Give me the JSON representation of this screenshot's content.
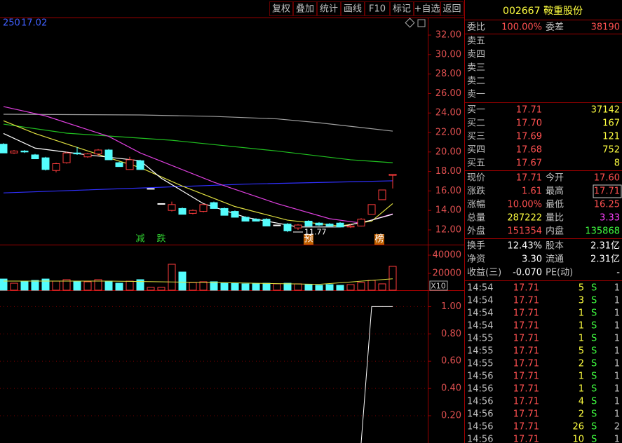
{
  "toolbar": [
    "复权",
    "叠加",
    "统计",
    "画线",
    "F10",
    "标记",
    "+自选",
    "返回"
  ],
  "ma_tag": "250",
  "ma_tag_value": "17.02",
  "price_chart": {
    "type": "candlestick",
    "ylim": [
      10.56,
      33.73
    ],
    "yticks": [
      {
        "value": 12,
        "label": "12.00"
      },
      {
        "value": 14,
        "label": "14.00"
      },
      {
        "value": 16,
        "label": "16.00"
      },
      {
        "value": 18,
        "label": "18.00"
      },
      {
        "value": 20,
        "label": "20.00"
      },
      {
        "value": 22,
        "label": "22.00"
      },
      {
        "value": 24,
        "label": "24.00"
      },
      {
        "value": 26,
        "label": "26.00"
      },
      {
        "value": 28,
        "label": "28.00"
      },
      {
        "value": 30,
        "label": "30.00"
      },
      {
        "value": 32,
        "label": "32.00"
      }
    ],
    "candles": [
      [
        20.8,
        20.9,
        19.9,
        19.9
      ],
      [
        19.9,
        20.2,
        19.8,
        20.1
      ],
      [
        20.1,
        20.2,
        19.9,
        20.0
      ],
      [
        19.7,
        19.8,
        19.3,
        19.3
      ],
      [
        19.4,
        19.5,
        18.1,
        18.2
      ],
      [
        18.1,
        18.9,
        17.9,
        18.8
      ],
      [
        18.9,
        20.0,
        18.8,
        19.9
      ],
      [
        19.9,
        20.5,
        19.7,
        19.8
      ],
      [
        19.5,
        19.9,
        19.4,
        19.8
      ],
      [
        19.8,
        20.3,
        19.6,
        20.2
      ],
      [
        20.2,
        20.3,
        19.2,
        19.2
      ],
      [
        18.9,
        19.0,
        18.5,
        18.5
      ],
      [
        18.2,
        19.5,
        18.2,
        19.2
      ],
      [
        19.1,
        19.2,
        18.2,
        18.2
      ],
      [
        16.25,
        16.25,
        16.25,
        16.25
      ],
      [
        14.7,
        14.7,
        14.7,
        14.7
      ],
      [
        14.0,
        14.9,
        13.9,
        14.6
      ],
      [
        14.2,
        14.3,
        13.6,
        13.6
      ],
      [
        13.7,
        14.1,
        13.6,
        14.0
      ],
      [
        13.9,
        14.7,
        13.8,
        14.6
      ],
      [
        14.8,
        14.9,
        14.2,
        14.2
      ],
      [
        14.2,
        14.3,
        13.5,
        13.5
      ],
      [
        13.9,
        14.0,
        13.3,
        13.3
      ],
      [
        13.3,
        13.4,
        12.9,
        12.9
      ],
      [
        13.1,
        13.2,
        12.9,
        12.9
      ],
      [
        13.1,
        13.2,
        12.4,
        12.4
      ],
      [
        12.5,
        12.5,
        12.5,
        12.5
      ],
      [
        12.6,
        12.7,
        11.77,
        11.9
      ],
      [
        12.2,
        12.6,
        12.0,
        12.5
      ],
      [
        12.9,
        13.0,
        12.4,
        12.4
      ],
      [
        12.7,
        12.8,
        12.4,
        12.5
      ],
      [
        12.6,
        12.7,
        12.4,
        12.4
      ],
      [
        12.7,
        12.8,
        12.3,
        12.3
      ],
      [
        12.3,
        12.6,
        12.2,
        12.4
      ],
      [
        12.4,
        13.2,
        12.35,
        13.1
      ],
      [
        13.6,
        14.6,
        13.6,
        14.6
      ],
      [
        15.1,
        16.1,
        15.1,
        16.1
      ],
      [
        17.6,
        17.71,
        16.25,
        17.71
      ]
    ],
    "up_color": "#ff3c3c",
    "down_color": "#54fcfc",
    "flat_color": "#ffffff",
    "lines": [
      {
        "color": "#a0a0a0",
        "x": [
          0,
          13,
          20,
          26,
          30,
          37
        ],
        "values": [
          23.87,
          23.8,
          23.65,
          23.4,
          23.0,
          22.14
        ]
      },
      {
        "color": "#20c020",
        "x": [
          0,
          6,
          16,
          26,
          33,
          37
        ],
        "values": [
          22.86,
          21.93,
          21.2,
          20.1,
          19.2,
          18.9
        ]
      },
      {
        "color": "#3030ff",
        "x": [
          0,
          13,
          23,
          37
        ],
        "values": [
          15.8,
          16.3,
          16.7,
          17.04
        ]
      },
      {
        "color": "#e040e0",
        "x": [
          0,
          4,
          10,
          13,
          20,
          26,
          31,
          34,
          37
        ],
        "values": [
          24.66,
          23.7,
          21.6,
          19.9,
          16.9,
          14.7,
          13.15,
          12.7,
          13.65
        ]
      },
      {
        "color": "#e0e040",
        "x": [
          0,
          3,
          10,
          13,
          17,
          22,
          27,
          32,
          35,
          37
        ],
        "values": [
          23.2,
          21.9,
          19.4,
          18.4,
          16.5,
          14.4,
          13.0,
          12.4,
          12.9,
          14.7
        ]
      },
      {
        "color": "#ffffff",
        "x": [
          0,
          3,
          8,
          13,
          15,
          19,
          23,
          28,
          32,
          35,
          37
        ],
        "values": [
          21.9,
          20.4,
          19.7,
          19.1,
          17.3,
          14.7,
          13.3,
          12.3,
          12.3,
          13.0,
          13.6
        ]
      }
    ],
    "annotations": [
      "减",
      "跌",
      "预",
      "榜"
    ],
    "low_label": "11.77"
  },
  "volume_chart": {
    "type": "bar",
    "ylim": [
      0,
      50000
    ],
    "yticks": [
      20000,
      40000
    ],
    "multiplier": "X10",
    "values": [
      13800,
      9200,
      10800,
      12300,
      13800,
      11500,
      13100,
      11500,
      10800,
      13100,
      11500,
      9200,
      11500,
      13100,
      4600,
      4600,
      30000,
      21500,
      10000,
      10800,
      10800,
      9200,
      9200,
      8500,
      8500,
      9200,
      8500,
      9200,
      8500,
      7700,
      6900,
      7700,
      6900,
      7700,
      10000,
      12300,
      8500,
      27700
    ],
    "line": {
      "color": "#e0e040",
      "x": [
        0,
        10,
        20,
        30,
        37
      ],
      "values": [
        11500,
        11500,
        10000,
        8000,
        14000
      ]
    }
  },
  "indicator_chart": {
    "type": "line",
    "ylim": [
      0,
      1.11
    ],
    "color": "#ffffff",
    "yticks": [
      {
        "value": 0.2,
        "label": "0.20"
      },
      {
        "value": 0.4,
        "label": "0.40"
      },
      {
        "value": 0.6,
        "label": "0.60"
      },
      {
        "value": 0.8,
        "label": "0.80"
      },
      {
        "value": 1,
        "label": "1.00"
      }
    ],
    "x": [
      34,
      35,
      37
    ],
    "values": [
      0,
      1,
      1
    ]
  },
  "quote": {
    "title": "002667 鞍重股份",
    "wei": {
      "l1": "委比",
      "v1": "100.00%",
      "l2": "委差",
      "v2": "38190"
    },
    "sell": [
      "卖五",
      "卖四",
      "卖三",
      "卖二",
      "卖一"
    ],
    "buy": [
      {
        "label": "买一",
        "price": "17.71",
        "volume": "37142"
      },
      {
        "label": "买二",
        "price": "17.70",
        "volume": "167"
      },
      {
        "label": "买三",
        "price": "17.69",
        "volume": "121"
      },
      {
        "label": "买四",
        "price": "17.68",
        "volume": "752"
      },
      {
        "label": "买五",
        "price": "17.67",
        "volume": "8"
      }
    ],
    "stats": [
      {
        "l1": "现价",
        "v1": "17.71",
        "c1": "#ff5050",
        "l2": "今开",
        "v2": "17.60",
        "c2": "#ff5050"
      },
      {
        "l1": "涨跌",
        "v1": "1.61",
        "c1": "#ff5050",
        "l2": "最高",
        "v2": "17.71",
        "c2": "#ff5050"
      },
      {
        "l1": "涨幅",
        "v1": "10.00%",
        "c1": "#ff5050",
        "l2": "最低",
        "v2": "16.25",
        "c2": "#ff5050"
      },
      {
        "l1": "总量",
        "v1": "287222",
        "c1": "#ffff40",
        "l2": "量比",
        "v2": "3.33",
        "c2": "#ff40ff"
      },
      {
        "l1": "外盘",
        "v1": "151354",
        "c1": "#ff5050",
        "l2": "内盘",
        "v2": "135868",
        "c2": "#40ff40"
      }
    ],
    "info": [
      {
        "l1": "换手",
        "v1": "12.43%",
        "l2": "股本",
        "v2": "2.31亿"
      },
      {
        "l1": "净资",
        "v1": "3.30",
        "l2": "流通",
        "v2": "2.31亿"
      },
      {
        "l1": "收益(三)",
        "v1": "-0.070",
        "l2": "PE(动)",
        "v2": "-"
      }
    ]
  },
  "trades": [
    {
      "time": "14:54",
      "price": "17.71",
      "volume": "5",
      "side": "S",
      "count": "1"
    },
    {
      "time": "14:54",
      "price": "17.71",
      "volume": "3",
      "side": "S",
      "count": "1"
    },
    {
      "time": "14:54",
      "price": "17.71",
      "volume": "1",
      "side": "S",
      "count": "1"
    },
    {
      "time": "14:54",
      "price": "17.71",
      "volume": "1",
      "side": "S",
      "count": "1"
    },
    {
      "time": "14:55",
      "price": "17.71",
      "volume": "1",
      "side": "S",
      "count": "1"
    },
    {
      "time": "14:55",
      "price": "17.71",
      "volume": "5",
      "side": "S",
      "count": "1"
    },
    {
      "time": "14:55",
      "price": "17.71",
      "volume": "2",
      "side": "S",
      "count": "1"
    },
    {
      "time": "14:56",
      "price": "17.71",
      "volume": "1",
      "side": "S",
      "count": "1"
    },
    {
      "time": "14:56",
      "price": "17.71",
      "volume": "1",
      "side": "S",
      "count": "1"
    },
    {
      "time": "14:56",
      "price": "17.71",
      "volume": "4",
      "side": "S",
      "count": "1"
    },
    {
      "time": "14:56",
      "price": "17.71",
      "volume": "2",
      "side": "S",
      "count": "1"
    },
    {
      "time": "14:56",
      "price": "17.71",
      "volume": "26",
      "side": "S",
      "count": "2"
    },
    {
      "time": "14:56",
      "price": "17.71",
      "volume": "10",
      "side": "S",
      "count": "1"
    }
  ]
}
